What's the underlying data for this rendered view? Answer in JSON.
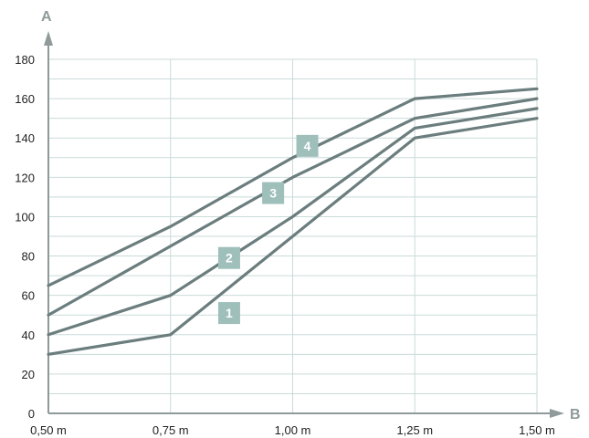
{
  "colors": {
    "line": "#6b7d7d",
    "grid": "#c9dbd9",
    "axis": "#8f9a9a",
    "badge": "#9fbfbb",
    "text": "#222222"
  },
  "chart_data": {
    "type": "line",
    "xlabel": "B",
    "ylabel": "A",
    "x": [
      0.5,
      0.75,
      1.0,
      1.25,
      1.5
    ],
    "x_tick_labels": [
      "0,50 m",
      "0,75 m",
      "1,00 m",
      "1,25 m",
      "1,50 m"
    ],
    "y_ticks": [
      0,
      20,
      40,
      60,
      80,
      100,
      120,
      140,
      160,
      180
    ],
    "xlim": [
      0.5,
      1.5
    ],
    "ylim": [
      0,
      180
    ],
    "grid": true,
    "series": [
      {
        "name": "1",
        "values": [
          30,
          40,
          90,
          140,
          150
        ],
        "label_at": [
          0.87,
          51
        ]
      },
      {
        "name": "2",
        "values": [
          40,
          60,
          100,
          145,
          155
        ],
        "label_at": [
          0.87,
          79
        ]
      },
      {
        "name": "3",
        "values": [
          50,
          85,
          120,
          150,
          160
        ],
        "label_at": [
          0.96,
          112
        ]
      },
      {
        "name": "4",
        "values": [
          65,
          95,
          130,
          160,
          165
        ],
        "label_at": [
          1.03,
          136
        ]
      }
    ]
  }
}
